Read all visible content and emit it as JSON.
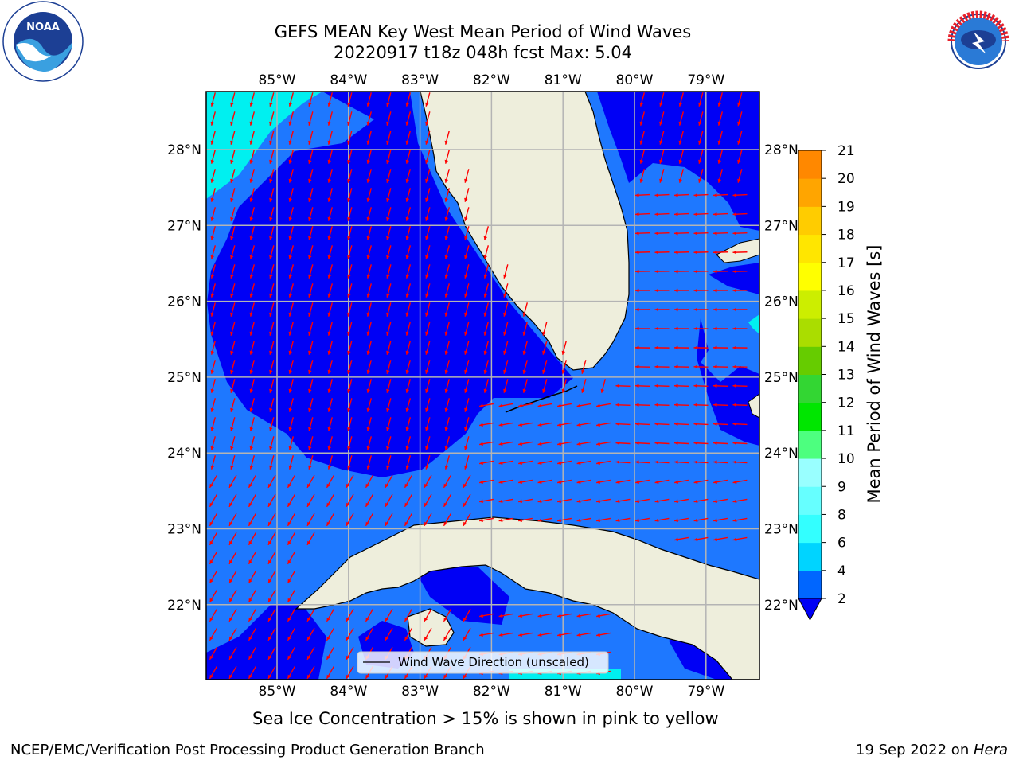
{
  "header": {
    "title_line1": "GEFS MEAN Key West Mean Period of Wind Waves",
    "title_line2": "20220917 t18z 048h fcst   Max: 5.04"
  },
  "map": {
    "lon_ticks": [
      "85°W",
      "84°W",
      "83°W",
      "82°W",
      "81°W",
      "80°W",
      "79°W"
    ],
    "lat_ticks": [
      "28°N",
      "27°N",
      "26°N",
      "25°N",
      "24°N",
      "23°N",
      "22°N"
    ],
    "legend_label": "Wind Wave Direction (unscaled)",
    "colors": {
      "band_2_4": "#0000f5",
      "band_4_6": "#1e78ff",
      "band_6_8": "#00f0f0",
      "land": "#eeeedc",
      "arrow": "#ff0000",
      "grid": "#b4b4b4"
    }
  },
  "colorbar": {
    "label": "Mean Period of Wind Waves [s]",
    "ticks": [
      "2",
      "4",
      "6",
      "8",
      "9",
      "10",
      "11",
      "12",
      "13",
      "14",
      "15",
      "16",
      "17",
      "18",
      "19",
      "20",
      "21"
    ],
    "colors": [
      "#0066ff",
      "#00d4ff",
      "#33ffff",
      "#66ffff",
      "#99ffff",
      "#4dff7f",
      "#00e600",
      "#33d633",
      "#66cc00",
      "#aadd00",
      "#ccee00",
      "#ffff00",
      "#ffe600",
      "#ffcc00",
      "#ffa500",
      "#ff8800",
      "#ff6600",
      "#ff4000",
      "#ff1a00",
      "#ff0000"
    ]
  },
  "caption": "Sea Ice Concentration > 15% is shown in pink to yellow",
  "footer": {
    "left": "NCEP/EMC/Verification Post Processing Product Generation Branch",
    "right_date": "19 Sep 2022 on ",
    "right_host": "Hera"
  },
  "logos": {
    "noaa_text": "NOAA",
    "nws_text": "NATIONAL WEATHER SERVICE"
  }
}
